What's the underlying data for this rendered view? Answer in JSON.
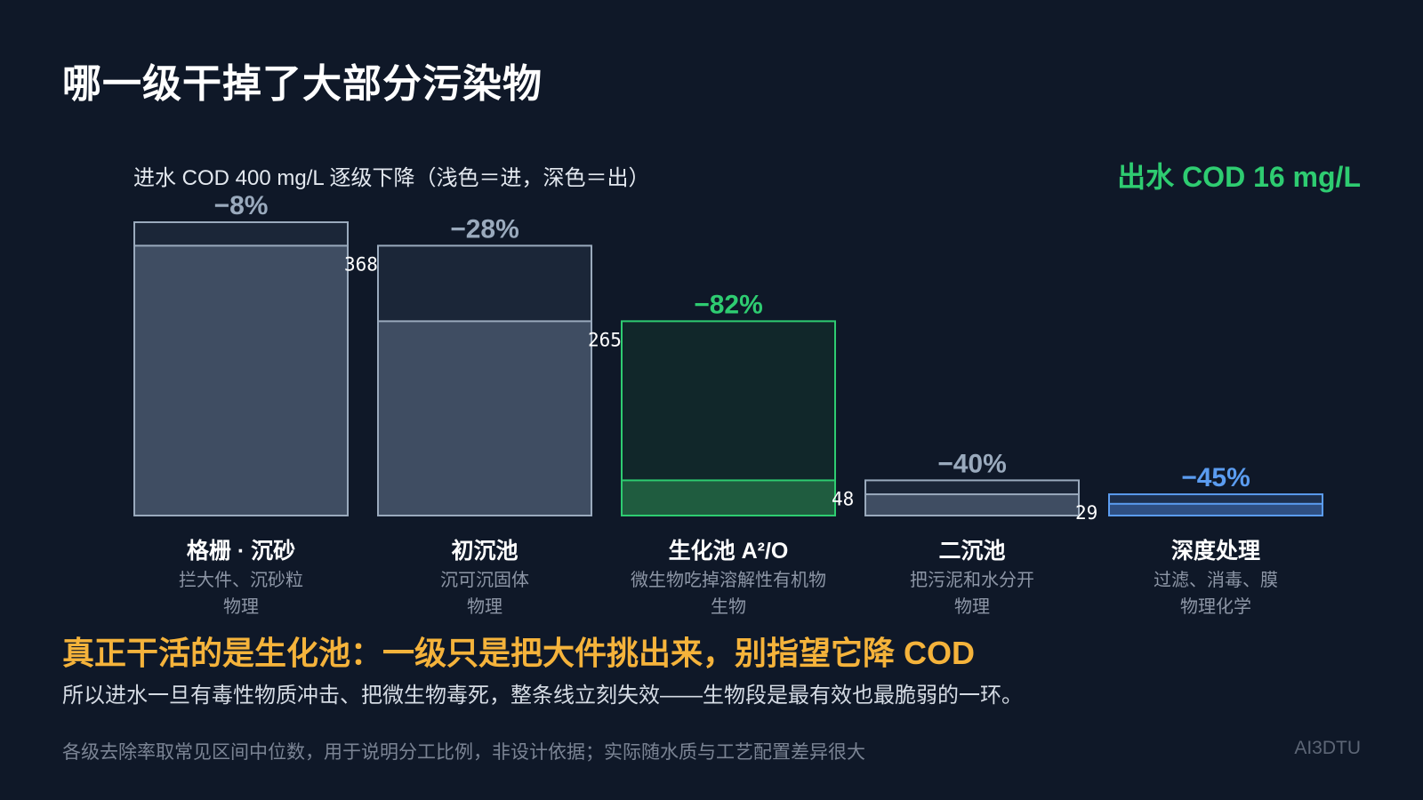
{
  "title": "哪一级干掉了大部分污染物",
  "subtitle": "进水 COD 400 mg/L 逐级下降（浅色＝进，深色＝出）",
  "effluent_label": "出水 COD 16 mg/L",
  "conclusion": "真正干活的是生化池：一级只是把大件挑出来，别指望它降 COD",
  "explanation": "所以进水一旦有毒性物质冲击、把微生物毒死，整条线立刻失效——生物段是最有效也最脆弱的一环。",
  "footnote": "各级去除率取常见区间中位数，用于说明分工比例，非设计依据；实际随水质与工艺配置差异很大",
  "brand": "AI3DTU",
  "colors": {
    "background": "#0f1828",
    "physical": "#9aaabd",
    "biological": "#2ecc71",
    "physchem": "#5b9cf0",
    "highlight": "#f5b33b"
  },
  "chart_data": {
    "type": "bar",
    "categories": [
      "格栅 · 沉砂",
      "初沉池",
      "生化池 A²/O",
      "二沉池",
      "深度处理"
    ],
    "series": [
      {
        "name": "进",
        "values": [
          400,
          368,
          265,
          48,
          29
        ]
      },
      {
        "name": "出",
        "values": [
          368,
          265,
          48,
          29,
          16
        ]
      }
    ],
    "removal_labels": [
      "−8%",
      "−28%",
      "−82%",
      "−40%",
      "−45%"
    ],
    "out_labels": [
      "368",
      "265",
      "48",
      "29",
      ""
    ],
    "descriptions": [
      "拦大件、沉砂粒",
      "沉可沉固体",
      "微生物吃掉溶解性有机物",
      "把污泥和水分开",
      "过滤、消毒、膜"
    ],
    "process_types": [
      "物理",
      "物理",
      "生物",
      "物理",
      "物理化学"
    ],
    "ylim": [
      0,
      400
    ]
  }
}
